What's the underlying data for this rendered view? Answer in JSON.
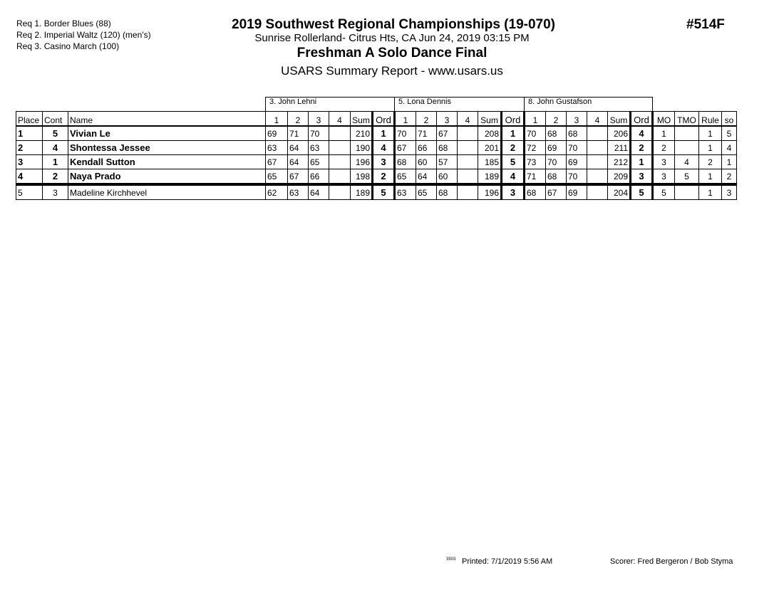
{
  "requirements": [
    "Req  1.  Border Blues (88)",
    "Req  2.  Imperial Waltz (120) (men's)",
    "Req  3.  Casino March (100)"
  ],
  "header": {
    "title": "2019 Southwest Regional Championships (19-070)",
    "venue": "Sunrise Rollerland- Citrus Hts, CA  Jun 24, 2019  03:15 PM",
    "event": "Freshman A Solo Dance Final",
    "report": "USARS Summary Report - www.usars.us",
    "event_number": "#514F"
  },
  "judges": [
    "3.  John Lehni",
    "5.  Lona Dennis",
    "8.  John Gustafson"
  ],
  "columns": {
    "place": "Place",
    "cont": "Cont",
    "name": "Name",
    "marks": [
      "1",
      "2",
      "3",
      "4"
    ],
    "sum": "Sum",
    "ord": "Ord",
    "mo": "MO",
    "tmo": "TMO",
    "rule": "Rule",
    "so": "so"
  },
  "rows": [
    {
      "place": "1",
      "cont": "5",
      "name": "Vivian Le",
      "bold": true,
      "judges": [
        {
          "m": [
            "69",
            "71",
            "70",
            ""
          ],
          "sum": "210",
          "ord": "1"
        },
        {
          "m": [
            "70",
            "71",
            "67",
            ""
          ],
          "sum": "208",
          "ord": "1"
        },
        {
          "m": [
            "70",
            "68",
            "68",
            ""
          ],
          "sum": "206",
          "ord": "4"
        }
      ],
      "mo": "1",
      "tmo": "",
      "rule": "1",
      "so": "5"
    },
    {
      "place": "2",
      "cont": "4",
      "name": "Shontessa Jessee",
      "bold": true,
      "judges": [
        {
          "m": [
            "63",
            "64",
            "63",
            ""
          ],
          "sum": "190",
          "ord": "4"
        },
        {
          "m": [
            "67",
            "66",
            "68",
            ""
          ],
          "sum": "201",
          "ord": "2"
        },
        {
          "m": [
            "72",
            "69",
            "70",
            ""
          ],
          "sum": "211",
          "ord": "2"
        }
      ],
      "mo": "2",
      "tmo": "",
      "rule": "1",
      "so": "4"
    },
    {
      "place": "3",
      "cont": "1",
      "name": "Kendall Sutton",
      "bold": true,
      "judges": [
        {
          "m": [
            "67",
            "64",
            "65",
            ""
          ],
          "sum": "196",
          "ord": "3"
        },
        {
          "m": [
            "68",
            "60",
            "57",
            ""
          ],
          "sum": "185",
          "ord": "5"
        },
        {
          "m": [
            "73",
            "70",
            "69",
            ""
          ],
          "sum": "212",
          "ord": "1"
        }
      ],
      "mo": "3",
      "tmo": "4",
      "rule": "2",
      "so": "1"
    },
    {
      "place": "4",
      "cont": "2",
      "name": "Naya Prado",
      "bold": true,
      "judges": [
        {
          "m": [
            "65",
            "67",
            "66",
            ""
          ],
          "sum": "198",
          "ord": "2"
        },
        {
          "m": [
            "65",
            "64",
            "60",
            ""
          ],
          "sum": "189",
          "ord": "4"
        },
        {
          "m": [
            "71",
            "68",
            "70",
            ""
          ],
          "sum": "209",
          "ord": "3"
        }
      ],
      "mo": "3",
      "tmo": "5",
      "rule": "1",
      "so": "2"
    },
    {
      "place": "5",
      "cont": "3",
      "name": "Madeline Kirchhevel",
      "bold": false,
      "judges": [
        {
          "m": [
            "62",
            "63",
            "64",
            ""
          ],
          "sum": "189",
          "ord": "5"
        },
        {
          "m": [
            "63",
            "65",
            "68",
            ""
          ],
          "sum": "196",
          "ord": "3"
        },
        {
          "m": [
            "68",
            "67",
            "69",
            ""
          ],
          "sum": "204",
          "ord": "5"
        }
      ],
      "mo": "5",
      "tmo": "",
      "rule": "1",
      "so": "3"
    }
  ],
  "footer": {
    "code": "3503",
    "printed": "Printed:  7/1/2019  5:56 AM",
    "scorer": "Scorer:   Fred Bergeron / Bob Styma"
  }
}
